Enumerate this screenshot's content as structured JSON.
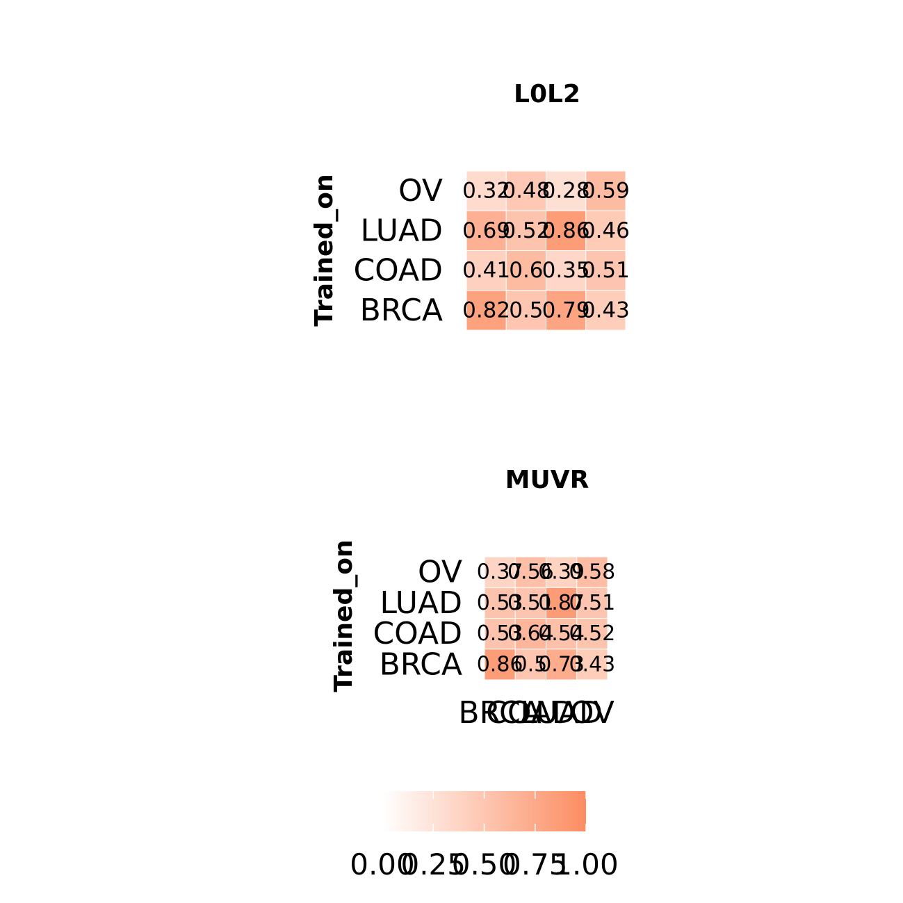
{
  "chart_data": [
    {
      "type": "heatmap",
      "title": "L0L2",
      "ylabel": "Trained_on",
      "xlabel": "",
      "rows": [
        "OV",
        "LUAD",
        "COAD",
        "BRCA"
      ],
      "cols": [
        "BRCA",
        "COAD",
        "LUAD",
        "OV"
      ],
      "values": [
        [
          0.32,
          0.48,
          0.28,
          0.59
        ],
        [
          0.69,
          0.52,
          0.86,
          0.46
        ],
        [
          0.41,
          0.6,
          0.35,
          0.51
        ],
        [
          0.82,
          0.5,
          0.79,
          0.43
        ]
      ],
      "labels": [
        [
          "0.32",
          "0.48",
          "0.28",
          "0.59"
        ],
        [
          "0.69",
          "0.52",
          "0.86",
          "0.46"
        ],
        [
          "0.41",
          "0.6",
          "0.35",
          "0.51"
        ],
        [
          "0.82",
          "0.5",
          "0.79",
          "0.43"
        ]
      ],
      "show_x_ticks": false
    },
    {
      "type": "heatmap",
      "title": "MUVR",
      "ylabel": "Trained_on",
      "xlabel": "",
      "rows": [
        "OV",
        "LUAD",
        "COAD",
        "BRCA"
      ],
      "cols": [
        "BRCA",
        "COAD",
        "LUAD",
        "OV"
      ],
      "values": [
        [
          0.37,
          0.56,
          0.39,
          0.58
        ],
        [
          0.53,
          0.51,
          0.87,
          0.51
        ],
        [
          0.53,
          0.64,
          0.54,
          0.52
        ],
        [
          0.86,
          0.5,
          0.73,
          0.43
        ]
      ],
      "labels": [
        [
          "0.37",
          "0.56",
          "0.39",
          "0.58"
        ],
        [
          "0.53",
          "0.51",
          "0.87",
          "0.51"
        ],
        [
          "0.53",
          "0.64",
          "0.54",
          "0.52"
        ],
        [
          "0.86",
          "0.5",
          "0.73",
          "0.43"
        ]
      ],
      "show_x_ticks": true
    }
  ],
  "legend": {
    "ticks": [
      "0.00",
      "0.25",
      "0.50",
      "0.75",
      "1.00"
    ],
    "tick_values": [
      0,
      0.25,
      0.5,
      0.75,
      1
    ],
    "range": [
      0,
      1
    ],
    "low_color": "#ffffff",
    "high_color": "#fc8d62",
    "placement": "bottom"
  }
}
